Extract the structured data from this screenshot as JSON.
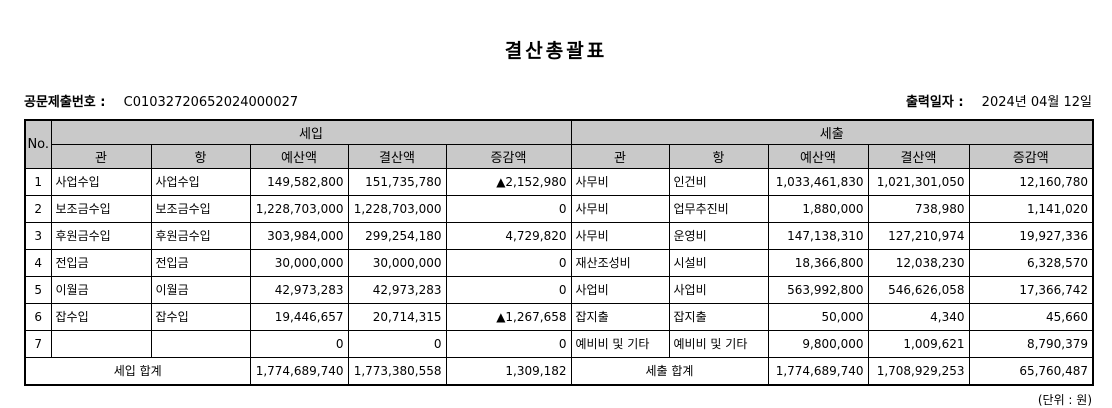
{
  "title": "결산총괄표",
  "meta": {
    "doc_no_label": "공문제출번호 :",
    "doc_no": "C01032720652024000027",
    "print_date_label": "출력일자 :",
    "print_date": "2024년 04월 12일"
  },
  "colors": {
    "header_bg": "#c9c9c9",
    "border": "#000000"
  },
  "table": {
    "no_header": "No.",
    "revenue_header": "세입",
    "expense_header": "세출",
    "sub_headers": [
      "관",
      "항",
      "예산액",
      "결산액",
      "증감액"
    ],
    "rows": [
      {
        "no": "1",
        "revenue": [
          "사업수입",
          "사업수입",
          "149,582,800",
          "151,735,780",
          "▲2,152,980"
        ],
        "expense": [
          "사무비",
          "인건비",
          "1,033,461,830",
          "1,021,301,050",
          "12,160,780"
        ]
      },
      {
        "no": "2",
        "revenue": [
          "보조금수입",
          "보조금수입",
          "1,228,703,000",
          "1,228,703,000",
          "0"
        ],
        "expense": [
          "사무비",
          "업무추진비",
          "1,880,000",
          "738,980",
          "1,141,020"
        ]
      },
      {
        "no": "3",
        "revenue": [
          "후원금수입",
          "후원금수입",
          "303,984,000",
          "299,254,180",
          "4,729,820"
        ],
        "expense": [
          "사무비",
          "운영비",
          "147,138,310",
          "127,210,974",
          "19,927,336"
        ]
      },
      {
        "no": "4",
        "revenue": [
          "전입금",
          "전입금",
          "30,000,000",
          "30,000,000",
          "0"
        ],
        "expense": [
          "재산조성비",
          "시설비",
          "18,366,800",
          "12,038,230",
          "6,328,570"
        ]
      },
      {
        "no": "5",
        "revenue": [
          "이월금",
          "이월금",
          "42,973,283",
          "42,973,283",
          "0"
        ],
        "expense": [
          "사업비",
          "사업비",
          "563,992,800",
          "546,626,058",
          "17,366,742"
        ]
      },
      {
        "no": "6",
        "revenue": [
          "잡수입",
          "잡수입",
          "19,446,657",
          "20,714,315",
          "▲1,267,658"
        ],
        "expense": [
          "잡지출",
          "잡지출",
          "50,000",
          "4,340",
          "45,660"
        ]
      },
      {
        "no": "7",
        "revenue": [
          "",
          "",
          "0",
          "0",
          "0"
        ],
        "expense": [
          "예비비 및 기타",
          "예비비 및 기타",
          "9,800,000",
          "1,009,621",
          "8,790,379"
        ]
      }
    ],
    "revenue_total_label": "세입 합계",
    "revenue_total": [
      "1,774,689,740",
      "1,773,380,558",
      "1,309,182"
    ],
    "expense_total_label": "세출 합계",
    "expense_total": [
      "1,774,689,740",
      "1,708,929,253",
      "65,760,487"
    ]
  },
  "footer": {
    "unit": "(단위 : 원)"
  }
}
